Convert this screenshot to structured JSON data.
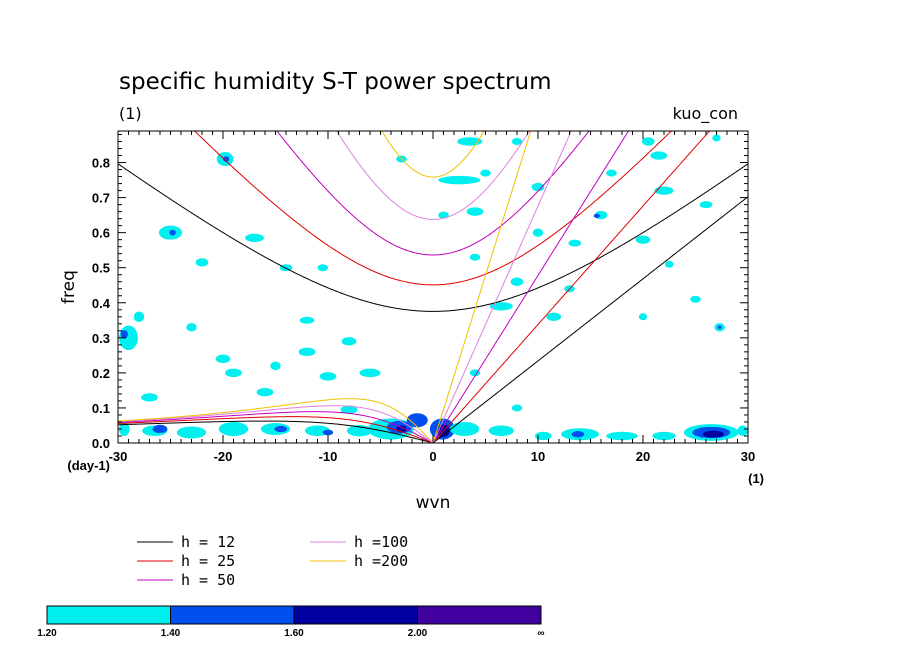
{
  "chart_data": {
    "type": "contour",
    "title": "specific humidity S-T power spectrum",
    "subtitle": "(1)",
    "run_label": "kuo_con",
    "xlabel": "wvn",
    "ylabel": "freq",
    "x_unit_label": "(1)",
    "y_unit_label": "(day-1)",
    "xlim": [
      -30,
      30
    ],
    "ylim": [
      0,
      0.89
    ],
    "x_ticks": [
      -30,
      -20,
      -10,
      0,
      10,
      20,
      30
    ],
    "y_ticks": [
      0.0,
      0.1,
      0.2,
      0.3,
      0.4,
      0.5,
      0.6,
      0.7,
      0.8
    ],
    "x_tick_labels": [
      "-30",
      "-20",
      "-10",
      "0",
      "10",
      "20",
      "30"
    ],
    "y_tick_labels": [
      "0.0",
      "0.1",
      "0.2",
      "0.3",
      "0.4",
      "0.5",
      "0.6",
      "0.7",
      "0.8"
    ],
    "dispersion_curves": [
      {
        "label": "h = 12",
        "equivalent_depth": 12,
        "color": "#000000"
      },
      {
        "label": "h = 25",
        "equivalent_depth": 25,
        "color": "#e00000"
      },
      {
        "label": "h = 50",
        "equivalent_depth": 50,
        "color": "#c000c0"
      },
      {
        "label": "h =100",
        "equivalent_depth": 100,
        "color": "#e080e0"
      },
      {
        "label": "h =200",
        "equivalent_depth": 200,
        "color": "#f0c000"
      }
    ],
    "color_levels": [
      {
        "from": "1.20",
        "to": "1.40",
        "color": "#00f0f0"
      },
      {
        "from": "1.40",
        "to": "1.60",
        "color": "#0050f0"
      },
      {
        "from": "1.60",
        "to": "2.00",
        "color": "#0000a0"
      },
      {
        "from": "2.00",
        "to": "∞",
        "color": "#4000a0"
      }
    ],
    "colorbar_labels": [
      "1.20",
      "1.40",
      "1.60",
      "2.00",
      "∞"
    ],
    "blobs": [
      {
        "k": -29,
        "f": 0.3,
        "rk": 0.9,
        "rf": 0.035,
        "level": 0
      },
      {
        "k": -29.4,
        "f": 0.31,
        "rk": 0.35,
        "rf": 0.012,
        "level": 1
      },
      {
        "k": -28,
        "f": 0.36,
        "rk": 0.5,
        "rf": 0.015,
        "level": 0
      },
      {
        "k": -29.4,
        "f": 0.04,
        "rk": 0.5,
        "rf": 0.02,
        "level": 0
      },
      {
        "k": -26.5,
        "f": 0.035,
        "rk": 1.2,
        "rf": 0.015,
        "level": 0
      },
      {
        "k": -25,
        "f": 0.6,
        "rk": 1.1,
        "rf": 0.02,
        "level": 0
      },
      {
        "k": -24.8,
        "f": 0.6,
        "rk": 0.3,
        "rf": 0.008,
        "level": 1
      },
      {
        "k": -19.8,
        "f": 0.81,
        "rk": 0.8,
        "rf": 0.02,
        "level": 0
      },
      {
        "k": -19.7,
        "f": 0.81,
        "rk": 0.3,
        "rf": 0.008,
        "level": 1
      },
      {
        "k": -22,
        "f": 0.515,
        "rk": 0.6,
        "rf": 0.012,
        "level": 0
      },
      {
        "k": -17,
        "f": 0.585,
        "rk": 0.9,
        "rf": 0.012,
        "level": 0
      },
      {
        "k": -14,
        "f": 0.5,
        "rk": 0.6,
        "rf": 0.01,
        "level": 0
      },
      {
        "k": -10.5,
        "f": 0.5,
        "rk": 0.5,
        "rf": 0.01,
        "level": 0
      },
      {
        "k": -27,
        "f": 0.13,
        "rk": 0.8,
        "rf": 0.012,
        "level": 0
      },
      {
        "k": -23,
        "f": 0.33,
        "rk": 0.5,
        "rf": 0.012,
        "level": 0
      },
      {
        "k": -20,
        "f": 0.24,
        "rk": 0.7,
        "rf": 0.012,
        "level": 0
      },
      {
        "k": -19,
        "f": 0.2,
        "rk": 0.8,
        "rf": 0.012,
        "level": 0
      },
      {
        "k": -16,
        "f": 0.145,
        "rk": 0.8,
        "rf": 0.012,
        "level": 0
      },
      {
        "k": -15,
        "f": 0.22,
        "rk": 0.5,
        "rf": 0.012,
        "level": 0
      },
      {
        "k": -12,
        "f": 0.26,
        "rk": 0.8,
        "rf": 0.012,
        "level": 0
      },
      {
        "k": -10,
        "f": 0.19,
        "rk": 0.8,
        "rf": 0.012,
        "level": 0
      },
      {
        "k": -8,
        "f": 0.095,
        "rk": 0.8,
        "rf": 0.012,
        "level": 0
      },
      {
        "k": -6,
        "f": 0.2,
        "rk": 1.0,
        "rf": 0.012,
        "level": 0
      },
      {
        "k": -8,
        "f": 0.29,
        "rk": 0.7,
        "rf": 0.012,
        "level": 0
      },
      {
        "k": -12,
        "f": 0.35,
        "rk": 0.7,
        "rf": 0.01,
        "level": 0
      },
      {
        "k": -26,
        "f": 0.04,
        "rk": 0.7,
        "rf": 0.012,
        "level": 1
      },
      {
        "k": -23,
        "f": 0.03,
        "rk": 1.4,
        "rf": 0.017,
        "level": 0
      },
      {
        "k": -19,
        "f": 0.04,
        "rk": 1.4,
        "rf": 0.02,
        "level": 0
      },
      {
        "k": -15,
        "f": 0.04,
        "rk": 1.4,
        "rf": 0.017,
        "level": 0
      },
      {
        "k": -14.5,
        "f": 0.04,
        "rk": 0.6,
        "rf": 0.009,
        "level": 1
      },
      {
        "k": -11,
        "f": 0.035,
        "rk": 1.2,
        "rf": 0.015,
        "level": 0
      },
      {
        "k": -7,
        "f": 0.035,
        "rk": 1.2,
        "rf": 0.016,
        "level": 0
      },
      {
        "k": -10,
        "f": 0.03,
        "rk": 0.5,
        "rf": 0.008,
        "level": 1
      },
      {
        "k": -4,
        "f": 0.04,
        "rk": 2.2,
        "rf": 0.03,
        "level": 0
      },
      {
        "k": -3.2,
        "f": 0.045,
        "rk": 1.2,
        "rf": 0.018,
        "level": 1
      },
      {
        "k": -3,
        "f": 0.04,
        "rk": 0.5,
        "rf": 0.01,
        "level": 2
      },
      {
        "k": -1.5,
        "f": 0.065,
        "rk": 1.0,
        "rf": 0.02,
        "level": 1
      },
      {
        "k": 0.9,
        "f": 0.04,
        "rk": 1.2,
        "rf": 0.03,
        "level": 1
      },
      {
        "k": 1.0,
        "f": 0.035,
        "rk": 0.6,
        "rf": 0.018,
        "level": 2
      },
      {
        "k": 3,
        "f": 0.04,
        "rk": 1.4,
        "rf": 0.02,
        "level": 0
      },
      {
        "k": 6.5,
        "f": 0.035,
        "rk": 1.2,
        "rf": 0.015,
        "level": 0
      },
      {
        "k": 10.5,
        "f": 0.02,
        "rk": 0.8,
        "rf": 0.012,
        "level": 0
      },
      {
        "k": 14,
        "f": 0.025,
        "rk": 1.8,
        "rf": 0.017,
        "level": 0
      },
      {
        "k": 13.8,
        "f": 0.025,
        "rk": 0.6,
        "rf": 0.009,
        "level": 1
      },
      {
        "k": 18,
        "f": 0.02,
        "rk": 1.5,
        "rf": 0.012,
        "level": 0
      },
      {
        "k": 22,
        "f": 0.02,
        "rk": 1.1,
        "rf": 0.012,
        "level": 0
      },
      {
        "k": 26.5,
        "f": 0.03,
        "rk": 2.6,
        "rf": 0.024,
        "level": 0
      },
      {
        "k": 26.5,
        "f": 0.03,
        "rk": 1.8,
        "rf": 0.016,
        "level": 1
      },
      {
        "k": 26.7,
        "f": 0.025,
        "rk": 1.0,
        "rf": 0.01,
        "level": 2
      },
      {
        "k": 29.5,
        "f": 0.035,
        "rk": 0.5,
        "rf": 0.015,
        "level": 0
      },
      {
        "k": 27.3,
        "f": 0.33,
        "rk": 0.5,
        "rf": 0.012,
        "level": 0
      },
      {
        "k": 27.3,
        "f": 0.33,
        "rk": 0.2,
        "rf": 0.005,
        "level": 1
      },
      {
        "k": 27,
        "f": 0.87,
        "rk": 0.4,
        "rf": 0.01,
        "level": 0
      },
      {
        "k": 20,
        "f": 0.58,
        "rk": 0.7,
        "rf": 0.012,
        "level": 0
      },
      {
        "k": 22,
        "f": 0.72,
        "rk": 0.9,
        "rf": 0.012,
        "level": 0
      },
      {
        "k": 26,
        "f": 0.68,
        "rk": 0.6,
        "rf": 0.01,
        "level": 0
      },
      {
        "k": 21.5,
        "f": 0.82,
        "rk": 0.8,
        "rf": 0.012,
        "level": 0
      },
      {
        "k": 16,
        "f": 0.65,
        "rk": 0.6,
        "rf": 0.012,
        "level": 0
      },
      {
        "k": 15.6,
        "f": 0.648,
        "rk": 0.3,
        "rf": 0.006,
        "level": 1
      },
      {
        "k": 13.5,
        "f": 0.57,
        "rk": 0.6,
        "rf": 0.01,
        "level": 0
      },
      {
        "k": 10,
        "f": 0.6,
        "rk": 0.5,
        "rf": 0.012,
        "level": 0
      },
      {
        "k": 8,
        "f": 0.46,
        "rk": 0.6,
        "rf": 0.012,
        "level": 0
      },
      {
        "k": 10,
        "f": 0.73,
        "rk": 0.6,
        "rf": 0.012,
        "level": 0
      },
      {
        "k": 5,
        "f": 0.77,
        "rk": 0.5,
        "rf": 0.01,
        "level": 0
      },
      {
        "k": 2.5,
        "f": 0.75,
        "rk": 2.0,
        "rf": 0.012,
        "level": 0
      },
      {
        "k": 1,
        "f": 0.65,
        "rk": 0.5,
        "rf": 0.01,
        "level": 0
      },
      {
        "k": 4,
        "f": 0.66,
        "rk": 0.8,
        "rf": 0.012,
        "level": 0
      },
      {
        "k": -3,
        "f": 0.81,
        "rk": 0.5,
        "rf": 0.01,
        "level": 0
      },
      {
        "k": 3.5,
        "f": 0.86,
        "rk": 1.2,
        "rf": 0.012,
        "level": 0
      },
      {
        "k": 8,
        "f": 0.86,
        "rk": 0.5,
        "rf": 0.01,
        "level": 0
      },
      {
        "k": 6.5,
        "f": 0.39,
        "rk": 1.1,
        "rf": 0.012,
        "level": 0
      },
      {
        "k": 11.5,
        "f": 0.36,
        "rk": 0.7,
        "rf": 0.012,
        "level": 0
      },
      {
        "k": 22.5,
        "f": 0.51,
        "rk": 0.4,
        "rf": 0.01,
        "level": 0
      },
      {
        "k": 25,
        "f": 0.41,
        "rk": 0.5,
        "rf": 0.01,
        "level": 0
      },
      {
        "k": 20,
        "f": 0.36,
        "rk": 0.4,
        "rf": 0.01,
        "level": 0
      },
      {
        "k": 4,
        "f": 0.53,
        "rk": 0.5,
        "rf": 0.01,
        "level": 0
      },
      {
        "k": 20.5,
        "f": 0.86,
        "rk": 0.6,
        "rf": 0.012,
        "level": 0
      },
      {
        "k": 17,
        "f": 0.77,
        "rk": 0.5,
        "rf": 0.01,
        "level": 0
      },
      {
        "k": 13,
        "f": 0.44,
        "rk": 0.5,
        "rf": 0.01,
        "level": 0
      },
      {
        "k": 8,
        "f": 0.1,
        "rk": 0.5,
        "rf": 0.01,
        "level": 0
      },
      {
        "k": 4,
        "f": 0.2,
        "rk": 0.5,
        "rf": 0.01,
        "level": 0
      }
    ]
  }
}
